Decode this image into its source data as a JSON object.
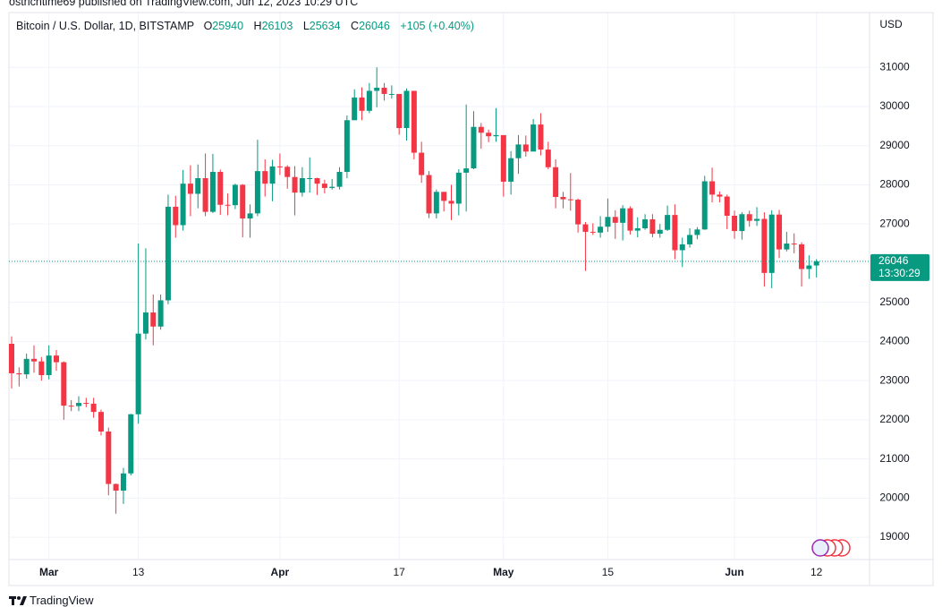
{
  "publisher": "ostrichtime69 published on TradingView.com, Jun 12, 2023 10:29 UTC",
  "watermark": "TradingView",
  "chart_data": {
    "type": "candlestick",
    "title": "Bitcoin / U.S. Dollar, 1D, BITSTAMP",
    "ohlc_labels": [
      "O",
      "H",
      "L",
      "C"
    ],
    "change_label": "+105 (+0.40%)",
    "countdown": "13:30:29",
    "y_axis_label": "USD",
    "up_color": "#089981",
    "down_color": "#f23645",
    "grid": true,
    "ylim": [
      18430,
      32400
    ],
    "yticks": [
      19000,
      20000,
      21000,
      22000,
      23000,
      24000,
      25000,
      26000,
      27000,
      28000,
      29000,
      30000,
      31000
    ],
    "xlim": [
      "2023-02-24",
      "2023-06-19"
    ],
    "xticks": [
      {
        "value": "2023-03-01",
        "label": "Mar"
      },
      {
        "value": "2023-03-13",
        "label": "13"
      },
      {
        "value": "2023-04-01",
        "label": "Apr"
      },
      {
        "value": "2023-04-17",
        "label": "17"
      },
      {
        "value": "2023-05-01",
        "label": "May"
      },
      {
        "value": "2023-05-15",
        "label": "15"
      },
      {
        "value": "2023-06-01",
        "label": "Jun"
      },
      {
        "value": "2023-06-12",
        "label": "12"
      }
    ],
    "x": [
      "2023-02-24",
      "2023-02-25",
      "2023-02-26",
      "2023-02-27",
      "2023-02-28",
      "2023-03-01",
      "2023-03-02",
      "2023-03-03",
      "2023-03-04",
      "2023-03-05",
      "2023-03-06",
      "2023-03-07",
      "2023-03-08",
      "2023-03-09",
      "2023-03-10",
      "2023-03-11",
      "2023-03-12",
      "2023-03-13",
      "2023-03-14",
      "2023-03-15",
      "2023-03-16",
      "2023-03-17",
      "2023-03-18",
      "2023-03-19",
      "2023-03-20",
      "2023-03-21",
      "2023-03-22",
      "2023-03-23",
      "2023-03-24",
      "2023-03-25",
      "2023-03-26",
      "2023-03-27",
      "2023-03-28",
      "2023-03-29",
      "2023-03-30",
      "2023-03-31",
      "2023-04-01",
      "2023-04-02",
      "2023-04-03",
      "2023-04-04",
      "2023-04-05",
      "2023-04-06",
      "2023-04-07",
      "2023-04-08",
      "2023-04-09",
      "2023-04-10",
      "2023-04-11",
      "2023-04-12",
      "2023-04-13",
      "2023-04-14",
      "2023-04-15",
      "2023-04-16",
      "2023-04-17",
      "2023-04-18",
      "2023-04-19",
      "2023-04-20",
      "2023-04-21",
      "2023-04-22",
      "2023-04-23",
      "2023-04-24",
      "2023-04-25",
      "2023-04-26",
      "2023-04-27",
      "2023-04-28",
      "2023-04-29",
      "2023-04-30",
      "2023-05-01",
      "2023-05-02",
      "2023-05-03",
      "2023-05-04",
      "2023-05-05",
      "2023-05-06",
      "2023-05-07",
      "2023-05-08",
      "2023-05-09",
      "2023-05-10",
      "2023-05-11",
      "2023-05-12",
      "2023-05-13",
      "2023-05-14",
      "2023-05-15",
      "2023-05-16",
      "2023-05-17",
      "2023-05-18",
      "2023-05-19",
      "2023-05-20",
      "2023-05-21",
      "2023-05-22",
      "2023-05-23",
      "2023-05-24",
      "2023-05-25",
      "2023-05-26",
      "2023-05-27",
      "2023-05-28",
      "2023-05-29",
      "2023-05-30",
      "2023-05-31",
      "2023-06-01",
      "2023-06-02",
      "2023-06-03",
      "2023-06-04",
      "2023-06-05",
      "2023-06-06",
      "2023-06-07",
      "2023-06-08",
      "2023-06-09",
      "2023-06-10",
      "2023-06-11",
      "2023-06-12"
    ],
    "open": [
      23940,
      23187,
      23160,
      23555,
      23490,
      23140,
      23640,
      23470,
      22360,
      22350,
      22430,
      22410,
      22200,
      21700,
      20360,
      20190,
      20630,
      22140,
      24200,
      24740,
      24380,
      25050,
      27440,
      26970,
      28030,
      27770,
      28170,
      27310,
      28330,
      27490,
      27480,
      28000,
      27140,
      27270,
      28350,
      28030,
      28470,
      28460,
      28200,
      27800,
      28170,
      28170,
      28030,
      27920,
      27950,
      28330,
      29650,
      30230,
      29890,
      30400,
      30480,
      30320,
      30320,
      29450,
      30400,
      28820,
      28250,
      27270,
      27820,
      27590,
      27520,
      28310,
      28420,
      29480,
      29330,
      29240,
      29270,
      28080,
      28680,
      29030,
      28850,
      29540,
      28900,
      28450,
      27690,
      27630,
      27620,
      26990,
      26800,
      26780,
      26930,
      27180,
      27030,
      27400,
      26830,
      26890,
      27120,
      26750,
      26850,
      27230,
      26330,
      26480,
      26720,
      26860,
      28090,
      27750,
      27700,
      27210,
      26820,
      27250,
      27080,
      27130,
      25750,
      27240,
      26350,
      26500,
      26480,
      25850,
      25940
    ],
    "high": [
      24130,
      23340,
      23690,
      23900,
      23600,
      23900,
      23780,
      23490,
      22500,
      22600,
      22560,
      22560,
      22260,
      21800,
      20370,
      20770,
      22150,
      26500,
      26380,
      25200,
      25200,
      27750,
      27720,
      28380,
      28500,
      28520,
      28800,
      28790,
      28390,
      27780,
      28030,
      28020,
      27500,
      29150,
      28650,
      28640,
      28800,
      28500,
      28480,
      28450,
      28700,
      28180,
      28130,
      28150,
      28450,
      29770,
      30440,
      30490,
      30600,
      31000,
      30600,
      30540,
      30320,
      30460,
      30400,
      29100,
      28350,
      27880,
      27820,
      28000,
      28400,
      30050,
      29880,
      29580,
      29410,
      29960,
      29260,
      28860,
      29270,
      29260,
      29680,
      29830,
      29100,
      28650,
      27820,
      28300,
      27650,
      27050,
      27020,
      27200,
      27650,
      27350,
      27480,
      27450,
      27170,
      27250,
      27250,
      27000,
      27470,
      27500,
      26650,
      26890,
      26920,
      28230,
      28440,
      27830,
      27750,
      27340,
      27300,
      27340,
      27430,
      27300,
      27350,
      27360,
      26800,
      26760,
      26530,
      26200,
      26103
    ],
    "low": [
      22800,
      22850,
      23050,
      23200,
      23000,
      23030,
      23250,
      22000,
      22220,
      22220,
      22320,
      22050,
      21600,
      20070,
      19600,
      19850,
      20580,
      21900,
      24050,
      23900,
      24300,
      24950,
      26650,
      26830,
      27200,
      27400,
      27200,
      27280,
      27230,
      27220,
      27380,
      26660,
      26650,
      27200,
      27700,
      27580,
      28250,
      27900,
      27220,
      27700,
      27800,
      27740,
      27780,
      27880,
      27880,
      28170,
      29660,
      29650,
      29830,
      29980,
      30150,
      30200,
      29280,
      29130,
      28650,
      28050,
      27150,
      27140,
      27320,
      27100,
      27220,
      27320,
      28400,
      28920,
      29090,
      29100,
      27700,
      27750,
      28280,
      28720,
      28860,
      28750,
      28400,
      27400,
      27400,
      27340,
      26780,
      25800,
      26720,
      26650,
      26800,
      26620,
      26580,
      26730,
      26660,
      26850,
      26660,
      26650,
      26820,
      26100,
      25900,
      26400,
      26610,
      26850,
      27550,
      27550,
      26870,
      26620,
      26600,
      26930,
      26950,
      25400,
      25360,
      26130,
      26300,
      26250,
      25400,
      25600,
      25634
    ],
    "close": [
      23187,
      23160,
      23555,
      23490,
      23140,
      23640,
      23470,
      22360,
      22350,
      22430,
      22410,
      22200,
      21700,
      20360,
      20190,
      20630,
      22140,
      24200,
      24740,
      24380,
      25050,
      27440,
      26970,
      28030,
      27770,
      28170,
      27310,
      28330,
      27490,
      27480,
      28000,
      27140,
      27270,
      28350,
      28030,
      28470,
      28460,
      28200,
      27800,
      28170,
      28170,
      28030,
      27920,
      27950,
      28330,
      29650,
      30230,
      29890,
      30400,
      30480,
      30320,
      30320,
      29450,
      30400,
      28820,
      28250,
      27270,
      27820,
      27590,
      27520,
      28310,
      28420,
      29480,
      29330,
      29240,
      29270,
      28080,
      28680,
      29030,
      28850,
      29540,
      28900,
      28450,
      27690,
      27630,
      27620,
      26990,
      26800,
      26780,
      26930,
      27180,
      27030,
      27400,
      26830,
      26890,
      27120,
      26750,
      26850,
      27230,
      26330,
      26480,
      26720,
      26860,
      28090,
      27750,
      27700,
      27210,
      26820,
      27250,
      27080,
      27130,
      25750,
      27240,
      26350,
      26500,
      26480,
      25850,
      25940,
      26046
    ]
  }
}
